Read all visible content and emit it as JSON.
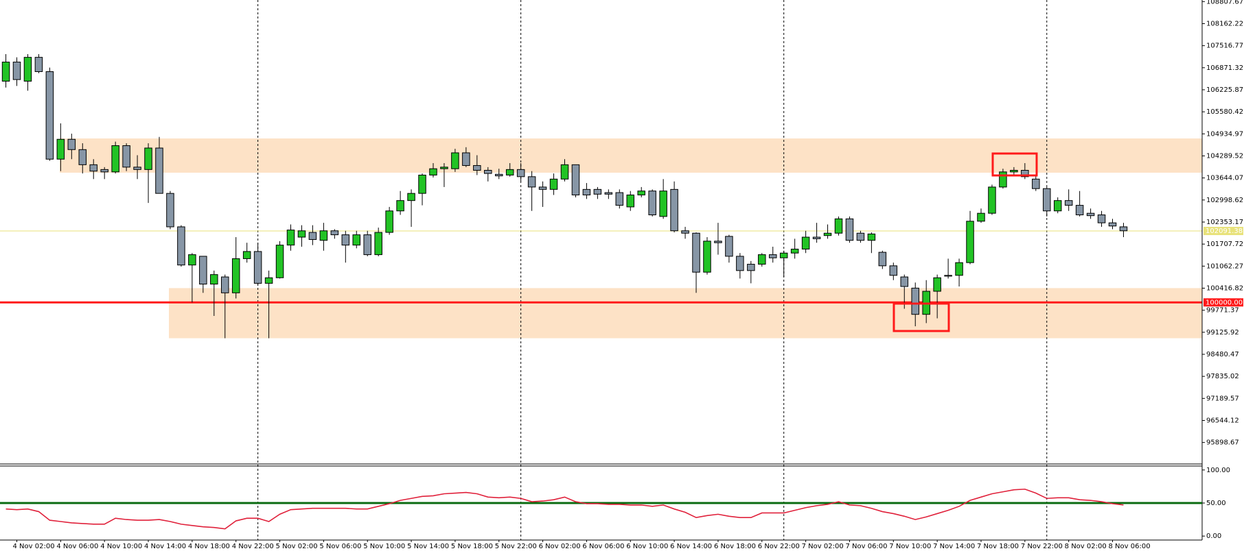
{
  "chart_data": {
    "type": "candlestick",
    "categories": [
      null,
      "4 Nov 02:00",
      null,
      null,
      null,
      "4 Nov 06:00",
      null,
      null,
      null,
      "4 Nov 10:00",
      null,
      null,
      null,
      "4 Nov 14:00",
      null,
      null,
      null,
      "4 Nov 18:00",
      null,
      null,
      null,
      "4 Nov 22:00",
      null,
      null,
      null,
      "5 Nov 02:00",
      null,
      null,
      null,
      "5 Nov 06:00",
      null,
      null,
      null,
      "5 Nov 10:00",
      null,
      null,
      null,
      "5 Nov 14:00",
      null,
      null,
      null,
      "5 Nov 18:00",
      null,
      null,
      null,
      "5 Nov 22:00",
      null,
      null,
      null,
      "6 Nov 02:00",
      null,
      null,
      null,
      "6 Nov 06:00",
      null,
      null,
      null,
      "6 Nov 10:00",
      null,
      null,
      null,
      "6 Nov 14:00",
      null,
      null,
      null,
      "6 Nov 18:00",
      null,
      null,
      null,
      "6 Nov 22:00",
      null,
      null,
      null,
      "7 Nov 02:00",
      null,
      null,
      null,
      "7 Nov 06:00",
      null,
      null,
      null,
      "7 Nov 10:00",
      null,
      null,
      null,
      "7 Nov 14:00",
      null,
      null,
      null,
      "7 Nov 18:00",
      null,
      null,
      null,
      "7 Nov 22:00",
      null,
      null,
      null,
      "8 Nov 02:00",
      null,
      null,
      null,
      "8 Nov 06:00",
      null
    ],
    "open": [
      106477,
      107037,
      106477,
      107176,
      106757,
      104194,
      104776,
      104474,
      104031,
      103891,
      103821,
      104590,
      103961,
      103891,
      104520,
      103192,
      102213,
      101095,
      101351,
      100536,
      100746,
      100280,
      101281,
      101491,
      100559,
      100722,
      101678,
      101911,
      102050,
      101817,
      102097,
      101980,
      101678,
      101980,
      101398,
      102050,
      102679,
      102982,
      103192,
      103728,
      103914,
      103914,
      104380,
      104008,
      103868,
      103751,
      103728,
      103891,
      103681,
      103378,
      103309,
      103611,
      104031,
      103309,
      103309,
      103215,
      103215,
      102796,
      103146,
      103262,
      102516,
      103309,
      102097,
      102027,
      100885,
      101794,
      101934,
      101351,
      101118,
      101118,
      101398,
      101305,
      101445,
      101561,
      101911,
      101957,
      102027,
      102447,
      102027,
      101817,
      101468,
      101072,
      100746,
      100419,
      99650,
      100326,
      100792,
      100792,
      101165,
      102377,
      102610,
      103378,
      103821,
      103868,
      103611,
      103332,
      102679,
      102982,
      102843,
      102610,
      102563,
      102330,
      102213
    ],
    "high": [
      107270,
      107176,
      107270,
      107270,
      106874,
      105242,
      104940,
      104660,
      104194,
      103961,
      104707,
      104660,
      104310,
      104660,
      104846,
      103262,
      102260,
      101445,
      101351,
      100932,
      100815,
      101911,
      101747,
      101747,
      100932,
      101794,
      102283,
      102260,
      102260,
      102330,
      102144,
      102097,
      102097,
      102097,
      102190,
      102796,
      103262,
      103309,
      103775,
      104078,
      104078,
      104497,
      104544,
      104310,
      103961,
      103914,
      104078,
      104078,
      103844,
      103542,
      103775,
      104194,
      104031,
      103495,
      103378,
      103309,
      103309,
      103262,
      103378,
      103309,
      103611,
      103542,
      102213,
      102050,
      101911,
      102330,
      101980,
      101445,
      101212,
      101445,
      101631,
      101514,
      101864,
      102097,
      102330,
      102283,
      102516,
      102516,
      102097,
      102050,
      101514,
      101165,
      100815,
      100582,
      100652,
      100815,
      101281,
      101281,
      102679,
      102749,
      103448,
      103914,
      103961,
      104078,
      103728,
      103378,
      103076,
      103309,
      103262,
      102749,
      102679,
      102447,
      102330
    ],
    "low": [
      106291,
      106338,
      106198,
      106710,
      104147,
      103844,
      104194,
      103775,
      103611,
      103611,
      103775,
      103844,
      103611,
      102912,
      103192,
      102144,
      101048,
      100000,
      100280,
      99604,
      98951,
      100116,
      101165,
      100513,
      98951,
      100699,
      101514,
      101631,
      101678,
      101514,
      101864,
      101165,
      101584,
      101351,
      101351,
      101980,
      102563,
      102213,
      102843,
      103658,
      103378,
      103821,
      103961,
      103728,
      103542,
      103611,
      103681,
      103542,
      102679,
      102796,
      103146,
      103542,
      103076,
      103029,
      103029,
      103029,
      102749,
      102679,
      103076,
      102516,
      102447,
      102050,
      101864,
      100280,
      100815,
      101398,
      101165,
      100699,
      100559,
      101048,
      101165,
      100746,
      101281,
      101445,
      101747,
      101864,
      101957,
      101747,
      101747,
      101445,
      100979,
      100652,
      99814,
      99301,
      99394,
      99534,
      100699,
      100466,
      101118,
      102330,
      102563,
      103332,
      103728,
      103611,
      103262,
      102516,
      102610,
      102679,
      102516,
      102447,
      102213,
      102144,
      101911
    ],
    "close": [
      107037,
      106524,
      107176,
      106757,
      104194,
      104776,
      104474,
      104031,
      103844,
      103821,
      104590,
      103961,
      103891,
      104520,
      103192,
      102213,
      101095,
      101398,
      100536,
      100815,
      100280,
      101281,
      101491,
      100559,
      100722,
      101678,
      102120,
      102097,
      101841,
      102097,
      101980,
      101678,
      101980,
      101398,
      102050,
      102679,
      102982,
      103192,
      103728,
      103914,
      103961,
      104380,
      104008,
      103868,
      103775,
      103705,
      103891,
      103681,
      103378,
      103309,
      103611,
      104031,
      103146,
      103146,
      103169,
      103169,
      102843,
      103146,
      103262,
      102563,
      103262,
      102097,
      102027,
      100885,
      101794,
      101747,
      101351,
      100932,
      100932,
      101398,
      101305,
      101445,
      101561,
      101911,
      101864,
      102027,
      102447,
      101817,
      101817,
      102004,
      101072,
      100792,
      100466,
      99650,
      100326,
      100722,
      100769,
      101165,
      102377,
      102610,
      103378,
      103821,
      103868,
      103681,
      103332,
      102679,
      102982,
      102843,
      102563,
      102540,
      102330,
      102237,
      102097
    ],
    "up_color": "#22c325",
    "down_color": "#8796a6",
    "ylim": [
      95270,
      108854
    ],
    "yticks": [
      108807.67,
      108162.22,
      107516.77,
      106871.32,
      106225.87,
      105580.42,
      104934.97,
      104289.52,
      103644.07,
      102998.62,
      102353.17,
      101707.72,
      101062.27,
      100416.82,
      99771.37,
      99125.92,
      98480.47,
      97835.02,
      97189.57,
      96544.12,
      95898.67
    ],
    "hlines": [
      {
        "value": 102091.38,
        "label": "102091.38",
        "color": "#e8e27a"
      },
      {
        "value": 100000,
        "label": "100000.00",
        "color": "#ff1a1a"
      }
    ],
    "zones": [
      {
        "ylim": [
          103798,
          104800
        ],
        "color": "#fde2c6"
      },
      {
        "ylim": [
          98951,
          100419
        ],
        "color": "#fde2c6"
      }
    ],
    "indicator": {
      "type": "line",
      "color": "#e0203a",
      "values": [
        41,
        40,
        41,
        37,
        24,
        22,
        20,
        19,
        18,
        18,
        27,
        25,
        24,
        24,
        25,
        22,
        18,
        16,
        14,
        13,
        11,
        23,
        27,
        27,
        22,
        33,
        40,
        41,
        42,
        42,
        42,
        42,
        41,
        41,
        45,
        49,
        54,
        57,
        60,
        61,
        64,
        65,
        66,
        64,
        59,
        58,
        59,
        57,
        52,
        53,
        55,
        59,
        52,
        49,
        49,
        48,
        48,
        47,
        47,
        45,
        47,
        41,
        36,
        28,
        31,
        33,
        30,
        28,
        28,
        35,
        35,
        35,
        39,
        43,
        46,
        48,
        52,
        47,
        46,
        42,
        37,
        34,
        30,
        25,
        29,
        34,
        39,
        45,
        54,
        59,
        64,
        67,
        70,
        71,
        65,
        57,
        58,
        58,
        55,
        54,
        52,
        49,
        47
      ],
      "ylim": [
        -6,
        106
      ],
      "yticks": [
        {
          "value": 100,
          "label": "100.00"
        },
        {
          "value": 50,
          "label": "50.00"
        },
        {
          "value": 0,
          "label": "0.00"
        }
      ],
      "level": 50,
      "level_color": "#0a6b10"
    }
  }
}
